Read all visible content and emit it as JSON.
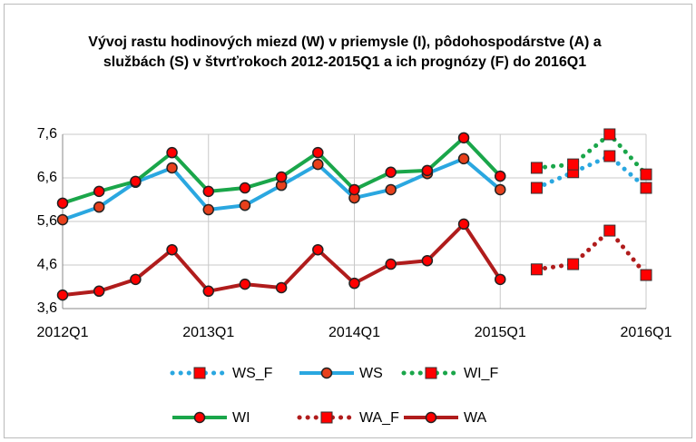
{
  "chart_data": {
    "type": "line",
    "title": "Vývoj rastu hodinových miezd (W) v priemysle (I), pôdohospodárstve (A) a službách (S) v štvrťrokoch 2012-2015Q1 a ich prognózy (F) do 2016Q1",
    "categories": [
      "2012Q1",
      null,
      null,
      null,
      "2013Q1",
      null,
      null,
      null,
      "2014Q1",
      null,
      null,
      null,
      "2015Q1",
      null,
      null,
      null,
      "2016Q1"
    ],
    "ylim": [
      3.6,
      7.6
    ],
    "yticks": [
      {
        "value": 3.6,
        "label": "3,6"
      },
      {
        "value": 4.6,
        "label": "4,6"
      },
      {
        "value": 5.6,
        "label": "5,6"
      },
      {
        "value": 6.6,
        "label": "6,6"
      },
      {
        "value": 7.6,
        "label": "7,6"
      }
    ],
    "grid": true,
    "legend": "bottom",
    "series": [
      {
        "name": "WS_F",
        "color": "#2aa7e0",
        "line_style": "dotted",
        "marker": "square",
        "marker_color": "#ff0000",
        "values": [
          null,
          null,
          null,
          null,
          null,
          null,
          null,
          null,
          null,
          null,
          null,
          null,
          null,
          6.37,
          6.73,
          7.1,
          6.37
        ]
      },
      {
        "name": "WS",
        "color": "#2aa7e0",
        "line_style": "solid",
        "marker": "circle",
        "marker_color": "#e8401c",
        "values": [
          5.64,
          5.93,
          6.5,
          6.83,
          5.87,
          5.97,
          6.43,
          6.91,
          6.14,
          6.33,
          6.7,
          7.04,
          6.33,
          null,
          null,
          null,
          null
        ]
      },
      {
        "name": "WI_F",
        "color": "#1aa64a",
        "line_style": "dotted",
        "marker": "square",
        "marker_color": "#ff0000",
        "values": [
          null,
          null,
          null,
          null,
          null,
          null,
          null,
          null,
          null,
          null,
          null,
          null,
          null,
          6.83,
          6.91,
          7.6,
          6.68
        ]
      },
      {
        "name": "WI",
        "color": "#1aa64a",
        "line_style": "solid",
        "marker": "circle",
        "marker_color": "#ff0000",
        "values": [
          6.02,
          6.29,
          6.52,
          7.18,
          6.29,
          6.37,
          6.62,
          7.18,
          6.33,
          6.73,
          6.77,
          7.52,
          6.64,
          null,
          null,
          null,
          null
        ]
      },
      {
        "name": "WA_F",
        "color": "#b01c1c",
        "line_style": "dotted",
        "marker": "square",
        "marker_color": "#ff0000",
        "values": [
          null,
          null,
          null,
          null,
          null,
          null,
          null,
          null,
          null,
          null,
          null,
          null,
          null,
          4.5,
          4.62,
          5.39,
          4.37
        ]
      },
      {
        "name": "WA",
        "color": "#b01c1c",
        "line_style": "solid",
        "marker": "circle",
        "marker_color": "#ff0000",
        "values": [
          3.91,
          4.0,
          4.27,
          4.95,
          4.0,
          4.16,
          4.08,
          4.95,
          4.18,
          4.62,
          4.7,
          5.54,
          4.27,
          null,
          null,
          null,
          null
        ]
      }
    ]
  }
}
